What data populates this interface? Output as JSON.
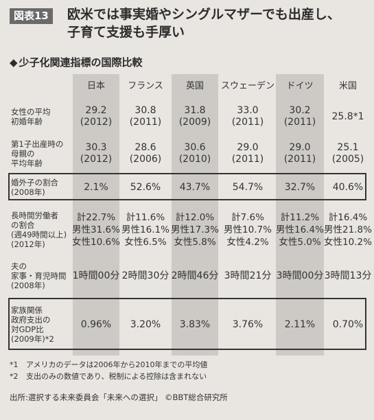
{
  "header": {
    "badge": "図表13",
    "title_line1": "欧米では事実婚やシングルマザーでも出産し、",
    "title_line2": "子育て支援も手厚い"
  },
  "section": {
    "icon": "diamond-icon",
    "icon_glyph": "◆",
    "title": "少子化関連指標の国際比較"
  },
  "table": {
    "columns": [
      "日本",
      "フランス",
      "英国",
      "スウェーデン",
      "ドイツ",
      "米国"
    ],
    "rows": [
      {
        "label": [
          "女性の平均",
          "初婚年齢"
        ],
        "cells": [
          [
            "29.2",
            "(2012)"
          ],
          [
            "30.8",
            "(2011)"
          ],
          [
            "31.8",
            "(2009)"
          ],
          [
            "33.0",
            "(2011)"
          ],
          [
            "30.2",
            "(2011)"
          ],
          [
            "25.8*1"
          ]
        ]
      },
      {
        "label": [
          "第1子出産時の",
          "母親の",
          "平均年齢"
        ],
        "cells": [
          [
            "30.3",
            "(2012)"
          ],
          [
            "28.6",
            "(2006)"
          ],
          [
            "30.6",
            "(2010)"
          ],
          [
            "29.0",
            "(2011)"
          ],
          [
            "29.0",
            "(2011)"
          ],
          [
            "25.1",
            "(2005)"
          ]
        ]
      },
      {
        "label": [
          "婚外子の割合",
          "(2008年)"
        ],
        "cells": [
          [
            "2.1%"
          ],
          [
            "52.6%"
          ],
          [
            "43.7%"
          ],
          [
            "54.7%"
          ],
          [
            "32.7%"
          ],
          [
            "40.6%"
          ]
        ]
      },
      {
        "label": [
          "長時間労働者",
          "の割合",
          "(週49時間以上)",
          "(2012年)"
        ],
        "cells": [
          [
            "計22.7%",
            "男性31.6%",
            "女性10.6%"
          ],
          [
            "計11.6%",
            "男性16.1%",
            "女性6.5%"
          ],
          [
            "計12.0%",
            "男性17.3%",
            "女性5.8%"
          ],
          [
            "計7.6%",
            "男性10.7%",
            "女性4.2%"
          ],
          [
            "計11.2%",
            "男性16.4%",
            "女性5.0%"
          ],
          [
            "計16.4%",
            "男性21.8%",
            "女性10.2%"
          ]
        ]
      },
      {
        "label": [
          "夫の",
          "家事・育児時間",
          "(2008年)"
        ],
        "cells": [
          [
            "1時間00分"
          ],
          [
            "2時間30分"
          ],
          [
            "2時間46分"
          ],
          [
            "3時間21分"
          ],
          [
            "3時間00分"
          ],
          [
            "3時間13分"
          ]
        ]
      },
      {
        "label": [
          "家族関係",
          "政府支出の",
          "対GDP比",
          "(2009年)*2"
        ],
        "cells": [
          [
            "0.96%"
          ],
          [
            "3.20%"
          ],
          [
            "3.83%"
          ],
          [
            "3.76%"
          ],
          [
            "2.11%"
          ],
          [
            "0.70%"
          ]
        ]
      }
    ]
  },
  "footnotes": [
    {
      "mark": "*1",
      "text": "アメリカのデータは2006年から2010年までの平均値"
    },
    {
      "mark": "*2",
      "text": "支出のみの数値であり、税制による控除は含まれない"
    }
  ],
  "source": "出所:選択する未来委員会「未来への選択」 ©BBT総合研究所"
}
